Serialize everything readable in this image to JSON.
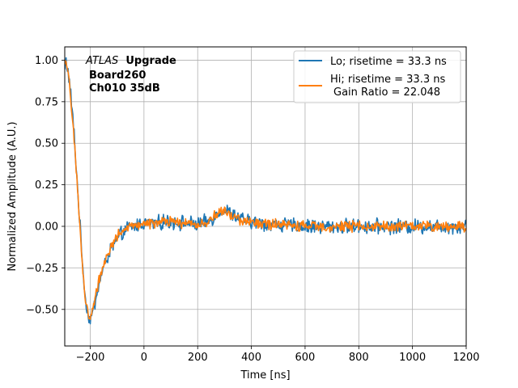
{
  "chart_data": {
    "type": "line",
    "xlabel": "Time [ns]",
    "ylabel": "Normalized Amplitude (A.U.)",
    "xlim": [
      -295,
      1200
    ],
    "ylim": [
      -0.72,
      1.08
    ],
    "xticks": [
      -200,
      0,
      200,
      400,
      600,
      800,
      1000,
      1200
    ],
    "yticks": [
      -0.5,
      -0.25,
      0.0,
      0.25,
      0.5,
      0.75,
      1.0
    ],
    "xtick_labels": [
      "−200",
      "0",
      "200",
      "400",
      "600",
      "800",
      "1000",
      "1200"
    ],
    "ytick_labels": [
      "−0.50",
      "−0.25",
      "0.00",
      "0.25",
      "0.50",
      "0.75",
      "1.00"
    ],
    "grid": true,
    "legend_position": "top-right",
    "annotation": {
      "atlas": "ATLAS",
      "upgrade": "Upgrade",
      "board": "Board260",
      "channel": "Ch010 35dB"
    },
    "series": [
      {
        "name": "Lo; risetime = 33.3 ns",
        "color": "#1f77b4",
        "noise_amplitude": 0.035,
        "x": [
          -295,
          -290,
          -280,
          -270,
          -260,
          -250,
          -240,
          -230,
          -220,
          -210,
          -200,
          -190,
          -180,
          -170,
          -160,
          -150,
          -140,
          -120,
          -100,
          -80,
          -60,
          -40,
          -20,
          0,
          50,
          100,
          150,
          200,
          240,
          270,
          290,
          310,
          340,
          380,
          420,
          500,
          600,
          700,
          800,
          900,
          1000,
          1100,
          1200
        ],
        "y": [
          0.94,
          1.0,
          0.9,
          0.75,
          0.55,
          0.3,
          0.05,
          -0.2,
          -0.4,
          -0.53,
          -0.56,
          -0.52,
          -0.44,
          -0.36,
          -0.3,
          -0.25,
          -0.2,
          -0.13,
          -0.08,
          -0.04,
          -0.01,
          0.0,
          0.01,
          0.02,
          0.02,
          0.03,
          0.02,
          0.01,
          0.03,
          0.07,
          0.1,
          0.09,
          0.06,
          0.03,
          0.02,
          0.01,
          0.0,
          0.0,
          0.0,
          0.0,
          0.0,
          0.0,
          0.0
        ]
      },
      {
        "name": "Hi; risetime = 33.3 ns",
        "name_line2": "Gain Ratio = 22.048",
        "color": "#ff7f0e",
        "noise_amplitude": 0.025,
        "x": [
          -295,
          -290,
          -280,
          -270,
          -260,
          -250,
          -240,
          -230,
          -220,
          -210,
          -200,
          -190,
          -180,
          -170,
          -160,
          -150,
          -140,
          -120,
          -100,
          -80,
          -60,
          -40,
          -20,
          0,
          50,
          100,
          150,
          200,
          240,
          270,
          290,
          310,
          340,
          380,
          420,
          500,
          600,
          700,
          800,
          900,
          1000,
          1100,
          1200
        ],
        "y": [
          0.96,
          0.99,
          0.88,
          0.73,
          0.53,
          0.28,
          0.03,
          -0.22,
          -0.41,
          -0.52,
          -0.54,
          -0.5,
          -0.42,
          -0.34,
          -0.28,
          -0.23,
          -0.18,
          -0.11,
          -0.06,
          -0.03,
          -0.01,
          0.0,
          0.01,
          0.02,
          0.02,
          0.03,
          0.02,
          0.01,
          0.03,
          0.07,
          0.09,
          0.08,
          0.05,
          0.03,
          0.02,
          0.01,
          0.0,
          0.0,
          0.0,
          0.0,
          0.0,
          0.0,
          0.0
        ]
      }
    ]
  }
}
